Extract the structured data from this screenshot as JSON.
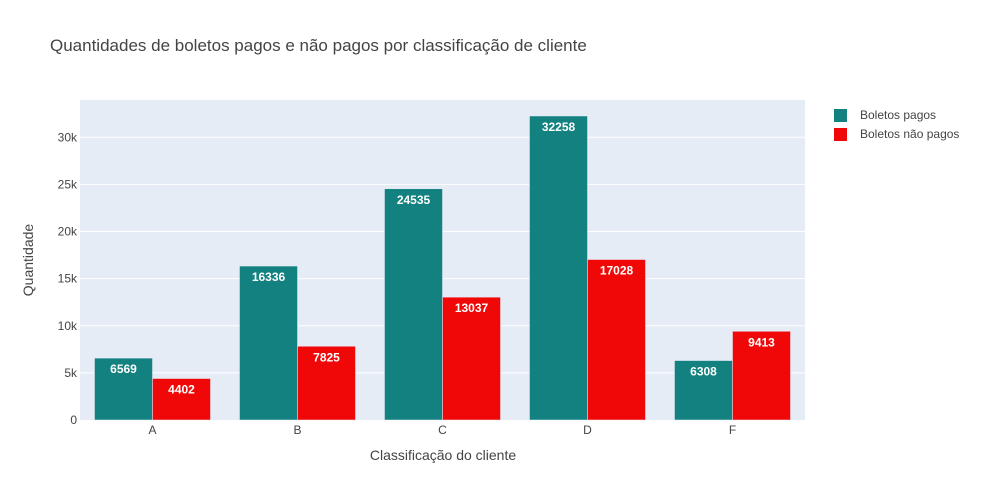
{
  "chart_data": {
    "type": "bar",
    "title": "Quantidades de boletos pagos e não pagos por classificação de cliente",
    "xlabel": "Classificação do cliente",
    "ylabel": "Quantidade",
    "categories": [
      "A",
      "B",
      "C",
      "D",
      "F"
    ],
    "series": [
      {
        "name": "Boletos pagos",
        "color": "#138180",
        "values": [
          6569,
          16336,
          24535,
          32258,
          6308
        ]
      },
      {
        "name": "Boletos não pagos",
        "color": "#f00808",
        "values": [
          4402,
          7825,
          13037,
          17028,
          9413
        ]
      }
    ],
    "ylim": [
      0,
      33955
    ],
    "yticks": [
      0,
      5000,
      10000,
      15000,
      20000,
      25000,
      30000
    ],
    "ytick_labels": [
      "0",
      "5k",
      "10k",
      "15k",
      "20k",
      "25k",
      "30k"
    ],
    "grid": true,
    "legend_position": "top-right",
    "plot_bg": "#e5ecf6"
  }
}
